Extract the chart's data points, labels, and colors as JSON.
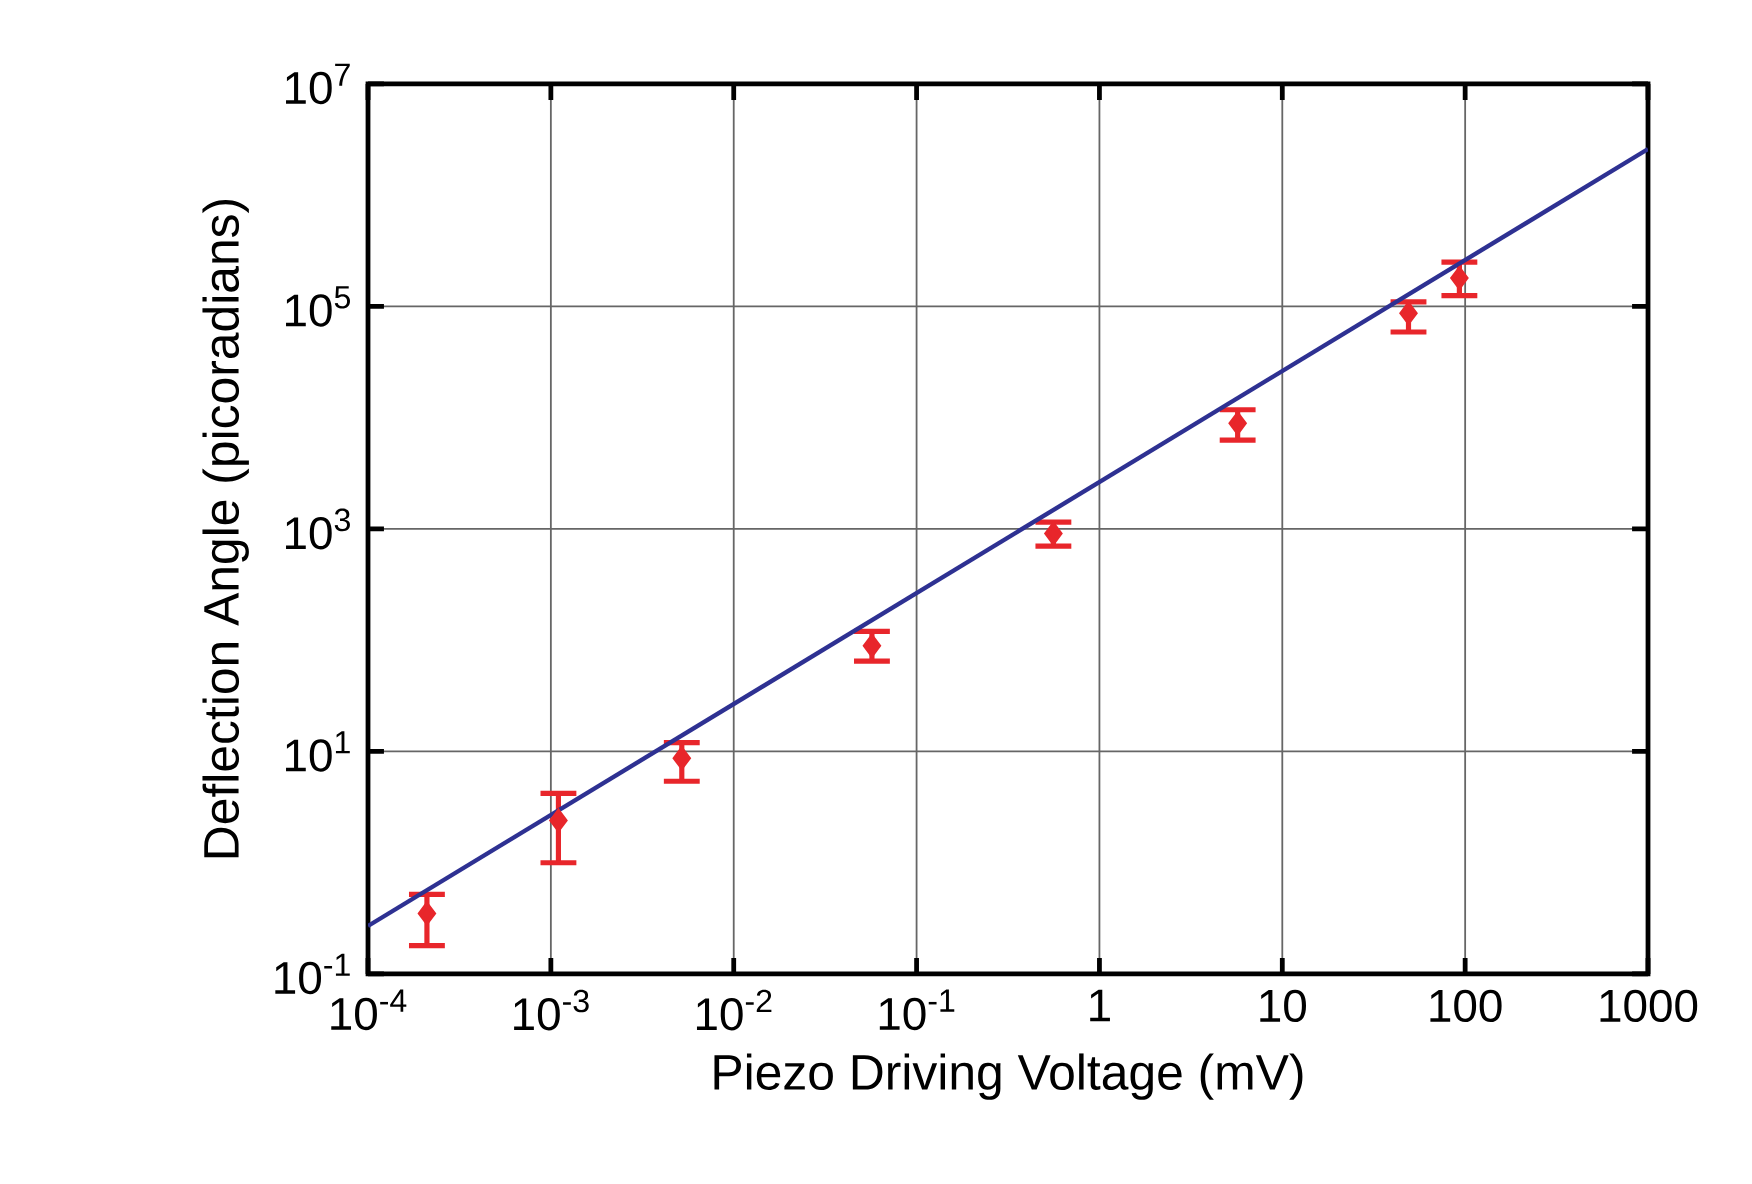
{
  "chart_data": {
    "type": "scatter",
    "xlabel": "Piezo Driving Voltage (mV)",
    "ylabel": "Deflection Angle (picoradians)",
    "log": "xy",
    "grid": true,
    "marker": "diamond",
    "xlim": [
      0.0001,
      1000
    ],
    "ylim": [
      0.1,
      10000000
    ],
    "xticks": [
      {
        "value": 0.0001,
        "label": "10$^{-4}$"
      },
      {
        "value": 0.001,
        "label": "10$^{-3}$"
      },
      {
        "value": 0.01,
        "label": "10$^{-2}$"
      },
      {
        "value": 0.1,
        "label": "10$^{-1}$"
      },
      1,
      10,
      100,
      1000
    ],
    "yticks": [
      {
        "value": 0.1,
        "label": "10$^{-1}$"
      },
      {
        "value": 10,
        "label": "10$^{1}$"
      },
      {
        "value": 1000,
        "label": "10$^{3}$"
      },
      {
        "value": 100000,
        "label": "10$^{5}$"
      },
      {
        "value": 10000000,
        "label": "10$^{7}$"
      }
    ],
    "series": [
      {
        "color": "#e8262b",
        "x": [
          0.00021,
          0.0011,
          0.0052,
          0.057,
          0.56,
          5.7,
          49,
          93
        ],
        "values": [
          0.35,
          2.4,
          8.7,
          89,
          910,
          8900,
          87000,
          180000
        ],
        "errors": [
          [
            0.18,
            0.52
          ],
          [
            1.0,
            4.2
          ],
          [
            5.4,
            12
          ],
          [
            65,
            120
          ],
          [
            700,
            1150
          ],
          [
            6300,
            11800
          ],
          [
            59000,
            110000
          ],
          [
            125000,
            250000
          ]
        ]
      },
      {
        "type": "line",
        "color": "#2e3192",
        "line_style": "solid",
        "marker": "none",
        "x": [
          0.0001,
          1000
        ],
        "values": [
          0.27,
          2600000
        ]
      }
    ]
  }
}
